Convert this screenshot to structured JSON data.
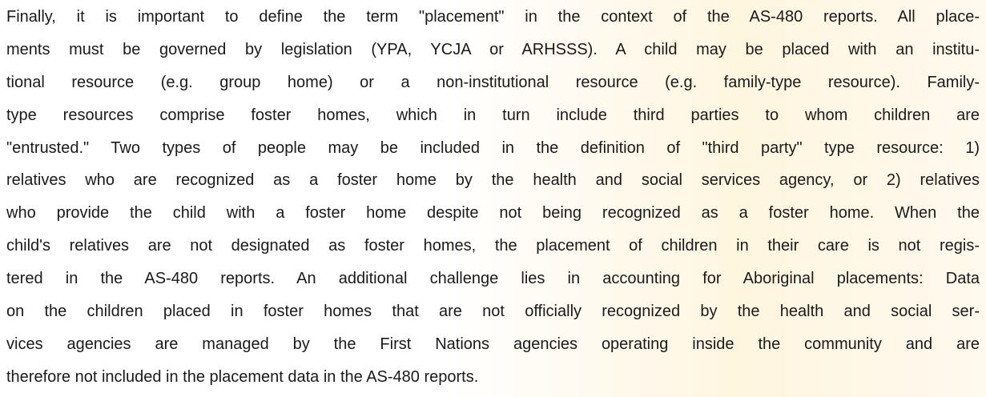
{
  "paragraph": {
    "lines": [
      "Finally, it is important to define the term \"placement\" in the context of the AS‑480 reports. All place-",
      "ments must be governed by legislation (YPA, YCJA or ARHSSS). A child may be placed with an institu-",
      "tional resource (e.g. group home) or a non-institutional resource (e.g. family-type resource). Family-",
      "type resources comprise foster homes, which in turn include third parties to whom children are",
      "\"entrusted.\" Two types of people may be included in the definition of \"third party\" type resource: 1)",
      "relatives who are recognized as a foster home by the health and social services agency, or 2) relatives",
      "who provide the child with a foster home despite not being recognized as a foster home. When the",
      "child's relatives are not designated as foster homes, the placement of children in their care is not regis-",
      "tered in the AS-480 reports. An additional challenge lies in accounting for Aboriginal placements: Data",
      "on the children placed in foster homes that are not officially recognized by the health and social ser-",
      "vices agencies are managed by the First Nations agencies operating inside the community and are",
      "therefore not included in the placement data in the AS-480 reports."
    ]
  }
}
